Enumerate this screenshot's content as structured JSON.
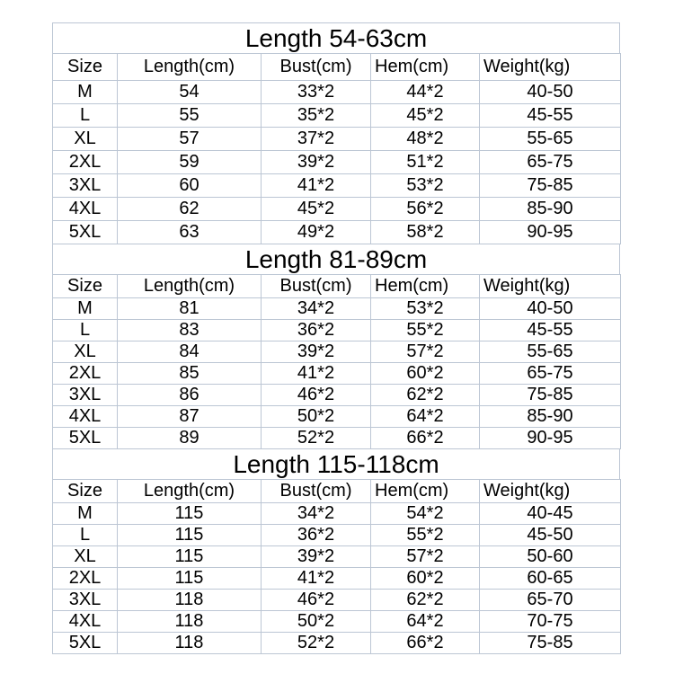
{
  "page": {
    "background_color": "#ffffff",
    "grid_color": "#bcc6d4",
    "text_color": "#000000"
  },
  "tables": [
    {
      "title": "Length 54-63cm",
      "columns": [
        "Size",
        "Length(cm)",
        "Bust(cm)",
        "Hem(cm)",
        "Weight(kg)"
      ],
      "rows": [
        [
          "M",
          "54",
          "33*2",
          "44*2",
          "40-50"
        ],
        [
          "L",
          "55",
          "35*2",
          "45*2",
          "45-55"
        ],
        [
          "XL",
          "57",
          "37*2",
          "48*2",
          "55-65"
        ],
        [
          "2XL",
          "59",
          "39*2",
          "51*2",
          "65-75"
        ],
        [
          "3XL",
          "60",
          "41*2",
          "53*2",
          "75-85"
        ],
        [
          "4XL",
          "62",
          "45*2",
          "56*2",
          "85-90"
        ],
        [
          "5XL",
          "63",
          "49*2",
          "58*2",
          "90-95"
        ]
      ]
    },
    {
      "title": "Length 81-89cm",
      "columns": [
        "Size",
        "Length(cm)",
        "Bust(cm)",
        "Hem(cm)",
        "Weight(kg)"
      ],
      "rows": [
        [
          "M",
          "81",
          "34*2",
          "53*2",
          "40-50"
        ],
        [
          "L",
          "83",
          "36*2",
          "55*2",
          "45-55"
        ],
        [
          "XL",
          "84",
          "39*2",
          "57*2",
          "55-65"
        ],
        [
          "2XL",
          "85",
          "41*2",
          "60*2",
          "65-75"
        ],
        [
          "3XL",
          "86",
          "46*2",
          "62*2",
          "75-85"
        ],
        [
          "4XL",
          "87",
          "50*2",
          "64*2",
          "85-90"
        ],
        [
          "5XL",
          "89",
          "52*2",
          "66*2",
          "90-95"
        ]
      ]
    },
    {
      "title": "Length 115-118cm",
      "columns": [
        "Size",
        "Length(cm)",
        "Bust(cm)",
        "Hem(cm)",
        "Weight(kg)"
      ],
      "rows": [
        [
          "M",
          "115",
          "34*2",
          "54*2",
          "40-45"
        ],
        [
          "L",
          "115",
          "36*2",
          "55*2",
          "45-50"
        ],
        [
          "XL",
          "115",
          "39*2",
          "57*2",
          "50-60"
        ],
        [
          "2XL",
          "115",
          "41*2",
          "60*2",
          "60-65"
        ],
        [
          "3XL",
          "118",
          "46*2",
          "62*2",
          "65-70"
        ],
        [
          "4XL",
          "118",
          "50*2",
          "64*2",
          "70-75"
        ],
        [
          "5XL",
          "118",
          "52*2",
          "66*2",
          "75-85"
        ]
      ]
    }
  ]
}
